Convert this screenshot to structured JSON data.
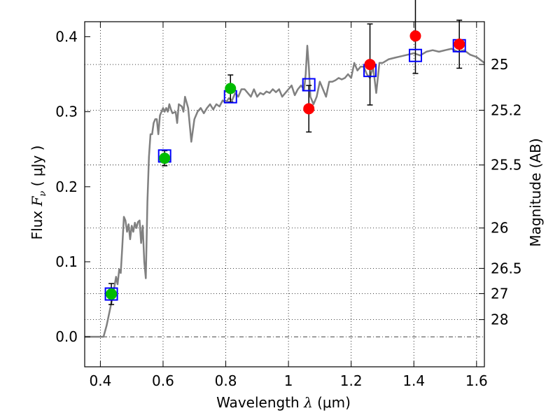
{
  "chart_data": {
    "type": "scatter",
    "xlabel": {
      "prefix": "Wavelength  ",
      "symbol": "λ",
      "unit": " (μm)"
    },
    "ylabel": {
      "prefix": "Flux  ",
      "symbol": "F",
      "subscript": "ν",
      "unit": "  ( μJy )"
    },
    "y2label": "Magnitude (AB)",
    "xlim": [
      0.35,
      1.625
    ],
    "ylim": [
      -0.04,
      0.42
    ],
    "xticks": [
      0.4,
      0.6,
      0.8,
      1.0,
      1.2,
      1.4,
      1.6
    ],
    "xtick_labels": [
      "0.4",
      "0.6",
      "0.8",
      "1",
      "1.2",
      "1.4",
      "1.6"
    ],
    "yticks": [
      0.0,
      0.1,
      0.2,
      0.3,
      0.4
    ],
    "ytick_labels": [
      "0.0",
      "0.1",
      "0.2",
      "0.3",
      "0.4"
    ],
    "y2_ticks": [
      {
        "label": "25",
        "flux": 0.363
      },
      {
        "label": "25.2",
        "flux": 0.302
      },
      {
        "label": "25.5",
        "flux": 0.229
      },
      {
        "label": "26",
        "flux": 0.145
      },
      {
        "label": "26.5",
        "flux": 0.0912
      },
      {
        "label": "27",
        "flux": 0.0575
      },
      {
        "label": "28",
        "flux": 0.0229
      }
    ],
    "grid": true,
    "zero_line": 0.0,
    "series": [
      {
        "role": "model_spectrum",
        "style": "line",
        "color": "#808080",
        "x": [
          0.35,
          0.41,
          0.42,
          0.43,
          0.44,
          0.45,
          0.455,
          0.46,
          0.465,
          0.47,
          0.475,
          0.48,
          0.485,
          0.49,
          0.495,
          0.5,
          0.505,
          0.51,
          0.515,
          0.52,
          0.525,
          0.53,
          0.535,
          0.54,
          0.545,
          0.55,
          0.555,
          0.56,
          0.565,
          0.57,
          0.575,
          0.58,
          0.585,
          0.59,
          0.595,
          0.6,
          0.605,
          0.61,
          0.615,
          0.62,
          0.625,
          0.63,
          0.64,
          0.645,
          0.65,
          0.66,
          0.665,
          0.67,
          0.68,
          0.69,
          0.7,
          0.71,
          0.72,
          0.73,
          0.74,
          0.75,
          0.76,
          0.77,
          0.78,
          0.79,
          0.8,
          0.81,
          0.82,
          0.83,
          0.84,
          0.85,
          0.86,
          0.87,
          0.88,
          0.89,
          0.9,
          0.91,
          0.92,
          0.93,
          0.94,
          0.95,
          0.96,
          0.97,
          0.98,
          0.99,
          1.0,
          1.01,
          1.02,
          1.03,
          1.04,
          1.05,
          1.055,
          1.06,
          1.065,
          1.07,
          1.08,
          1.09,
          1.1,
          1.11,
          1.12,
          1.13,
          1.14,
          1.15,
          1.16,
          1.17,
          1.18,
          1.19,
          1.2,
          1.21,
          1.22,
          1.23,
          1.24,
          1.25,
          1.26,
          1.27,
          1.28,
          1.29,
          1.3,
          1.32,
          1.34,
          1.36,
          1.38,
          1.4,
          1.42,
          1.44,
          1.46,
          1.48,
          1.5,
          1.52,
          1.54,
          1.56,
          1.58,
          1.6,
          1.625
        ],
        "y": [
          0.0,
          0.0,
          0.015,
          0.035,
          0.055,
          0.08,
          0.07,
          0.09,
          0.085,
          0.12,
          0.16,
          0.155,
          0.14,
          0.15,
          0.13,
          0.148,
          0.14,
          0.152,
          0.145,
          0.153,
          0.155,
          0.125,
          0.148,
          0.1,
          0.078,
          0.18,
          0.24,
          0.27,
          0.27,
          0.285,
          0.29,
          0.29,
          0.27,
          0.295,
          0.3,
          0.305,
          0.3,
          0.305,
          0.3,
          0.31,
          0.303,
          0.298,
          0.3,
          0.285,
          0.31,
          0.307,
          0.3,
          0.32,
          0.305,
          0.26,
          0.29,
          0.3,
          0.305,
          0.298,
          0.305,
          0.31,
          0.303,
          0.31,
          0.307,
          0.315,
          0.312,
          0.318,
          0.315,
          0.325,
          0.32,
          0.33,
          0.33,
          0.325,
          0.32,
          0.33,
          0.32,
          0.325,
          0.323,
          0.327,
          0.325,
          0.33,
          0.326,
          0.33,
          0.32,
          0.325,
          0.33,
          0.335,
          0.322,
          0.33,
          0.335,
          0.33,
          0.35,
          0.388,
          0.36,
          0.32,
          0.31,
          0.32,
          0.34,
          0.33,
          0.32,
          0.34,
          0.34,
          0.342,
          0.345,
          0.343,
          0.345,
          0.35,
          0.345,
          0.365,
          0.355,
          0.36,
          0.36,
          0.35,
          0.345,
          0.36,
          0.325,
          0.365,
          0.365,
          0.37,
          0.372,
          0.374,
          0.376,
          0.378,
          0.375,
          0.38,
          0.382,
          0.38,
          0.382,
          0.384,
          0.38,
          0.382,
          0.376,
          0.373,
          0.365
        ]
      },
      {
        "role": "model_photometry",
        "style": "open_square",
        "color": "#0000ff",
        "x": [
          0.435,
          0.605,
          0.815,
          1.065,
          1.26,
          1.405,
          1.545
        ],
        "y": [
          0.057,
          0.241,
          0.32,
          0.336,
          0.355,
          0.375,
          0.388
        ]
      },
      {
        "role": "observed_optical",
        "style": "filled_circle",
        "color": "#00bb00",
        "x": [
          0.435,
          0.605,
          0.815
        ],
        "y": [
          0.057,
          0.238,
          0.331
        ],
        "yerr": [
          0.014,
          0.01,
          0.018
        ]
      },
      {
        "role": "observed_nir",
        "style": "filled_circle",
        "color": "#ff0000",
        "x": [
          1.065,
          1.26,
          1.405,
          1.545
        ],
        "y": [
          0.304,
          0.363,
          0.401,
          0.39
        ],
        "yerr": [
          0.031,
          0.054,
          0.05,
          0.032
        ]
      }
    ]
  }
}
